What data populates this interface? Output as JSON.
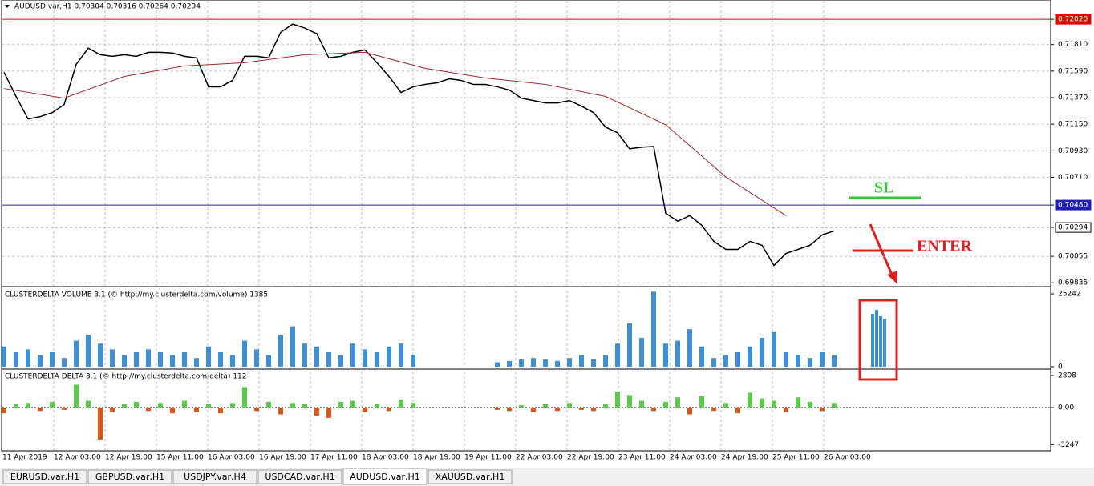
{
  "chart_data": [
    {
      "type": "line",
      "title": "AUDUSD.var,H1  0.70304 0.70316 0.70264 0.70294",
      "xtick_labels": [
        "11 Apr 2019",
        "12 Apr 03:00",
        "12 Apr 19:00",
        "15 Apr 11:00",
        "16 Apr 03:00",
        "16 Apr 19:00",
        "17 Apr 11:00",
        "18 Apr 03:00",
        "18 Apr 19:00",
        "19 Apr 11:00",
        "22 Apr 03:00",
        "22 Apr 19:00",
        "23 Apr 11:00",
        "24 Apr 03:00",
        "24 Apr 19:00",
        "25 Apr 11:00",
        "26 Apr 03:00"
      ],
      "close": [
        0.7158,
        0.7138,
        0.71193,
        0.71213,
        0.71246,
        0.71313,
        0.71646,
        0.7178,
        0.71726,
        0.71713,
        0.71726,
        0.71713,
        0.71746,
        0.71746,
        0.7174,
        0.71713,
        0.717,
        0.7146,
        0.7146,
        0.71513,
        0.71713,
        0.71713,
        0.717,
        0.71913,
        0.7198,
        0.71947,
        0.719,
        0.717,
        0.71713,
        0.71746,
        0.71766,
        0.7166,
        0.71546,
        0.71413,
        0.7146,
        0.7148,
        0.71493,
        0.71526,
        0.71513,
        0.7148,
        0.7148,
        0.7146,
        0.71433,
        0.71366,
        0.71346,
        0.71326,
        0.71326,
        0.71346,
        0.713,
        0.71246,
        0.71126,
        0.71079,
        0.70946,
        0.70959,
        0.70966,
        0.70412,
        0.70346,
        0.70392,
        0.70312,
        0.70179,
        0.70112,
        0.70112,
        0.70179,
        0.70146,
        0.69979,
        0.70079,
        0.70112,
        0.70146,
        0.70232,
        0.70266
      ],
      "close_color": "#000000",
      "ma": [
        0.71446,
        0.71366,
        0.71546,
        0.71633,
        0.7166,
        0.71726,
        0.71746,
        0.71613,
        0.71533,
        0.7148,
        0.7138,
        0.71146,
        0.70713,
        0.70392
      ],
      "ma_color": "#9b2a2a",
      "ylim": [
        0.6981,
        0.7218
      ],
      "yticks": [
        {
          "value": 0.7202,
          "label": "0.72020"
        },
        {
          "value": 0.7181,
          "label": "0.71810"
        },
        {
          "value": 0.7159,
          "label": "0.71590"
        },
        {
          "value": 0.7137,
          "label": "0.71370"
        },
        {
          "value": 0.7115,
          "label": "0.71150"
        },
        {
          "value": 0.7093,
          "label": "0.70930"
        },
        {
          "value": 0.7071,
          "label": "0.70710"
        },
        {
          "value": 0.7048,
          "label": "0.70480"
        },
        {
          "value": 0.70294,
          "label": "0.70294"
        },
        {
          "value": 0.70055,
          "label": "0.70055"
        },
        {
          "value": 0.69835,
          "label": "0.69835"
        }
      ],
      "levels": [
        {
          "value": 0.7202,
          "color": "#e00000",
          "dashed": false
        },
        {
          "value": 0.7048,
          "color": "#2020b0",
          "dashed": false
        },
        {
          "value": 0.70294,
          "color": "#909090",
          "dashed": true
        }
      ],
      "grid": true,
      "annotations": {
        "sl": "SL",
        "enter": "ENTER"
      }
    },
    {
      "type": "bar",
      "title": "CLUSTERDELTA VOLUME 3.1 (© http://my.clusterdelta.com/volume) 1385",
      "values": [
        7000,
        5000,
        6000,
        4000,
        5000,
        3000,
        9000,
        11000,
        8000,
        6000,
        4000,
        5000,
        6000,
        5000,
        4000,
        5000,
        3000,
        7000,
        5000,
        4000,
        9000,
        6000,
        4000,
        11000,
        14000,
        8000,
        7000,
        5000,
        4000,
        8000,
        6000,
        5000,
        7000,
        8000,
        4000,
        null,
        null,
        null,
        null,
        null,
        null,
        1500,
        2000,
        2500,
        3000,
        2500,
        2000,
        3000,
        4000,
        2500,
        4000,
        8000,
        15000,
        10000,
        26000,
        8000,
        9000,
        13000,
        7000,
        3000,
        4000,
        5000,
        7000,
        10000,
        12000,
        5000,
        4000,
        3000,
        5000,
        4000
      ],
      "highlight_values": [
        18300,
        19700,
        17500,
        16600
      ],
      "color": "#3d8fd6",
      "ylim": [
        0,
        26630
      ],
      "yticks": [
        25242,
        0
      ]
    },
    {
      "type": "bar",
      "title": "CLUSTERDELTA DELTA 3.1 (© http://my.clusterdelta.com/delta) 112",
      "values": [
        -500,
        300,
        400,
        -300,
        500,
        -200,
        2000,
        600,
        -2800,
        -400,
        300,
        500,
        -300,
        400,
        -500,
        600,
        -400,
        300,
        -500,
        400,
        1800,
        -300,
        500,
        -600,
        400,
        300,
        -700,
        -900,
        500,
        600,
        -400,
        300,
        -300,
        700,
        400,
        null,
        null,
        null,
        null,
        null,
        null,
        -200,
        -300,
        200,
        -400,
        300,
        -300,
        400,
        -200,
        -300,
        300,
        1400,
        1100,
        600,
        -300,
        500,
        900,
        -600,
        1000,
        -300,
        400,
        -500,
        1300,
        800,
        600,
        -400,
        900,
        500,
        -300,
        400
      ],
      "pos_color": "#5cc94a",
      "neg_color": "#d4571c",
      "ylim": [
        -3720,
        3230
      ],
      "yticks": [
        2808,
        {
          "value": 0,
          "label": "0.00"
        },
        -3247
      ]
    }
  ],
  "tabs": [
    "EURUSD.var,H1",
    "GBPUSD.var,H1",
    "USDJPY.var,H4",
    "USDCAD.var,H1",
    "AUDUSD.var,H1",
    "XAUUSD.var,H1"
  ],
  "active_tab": 4
}
